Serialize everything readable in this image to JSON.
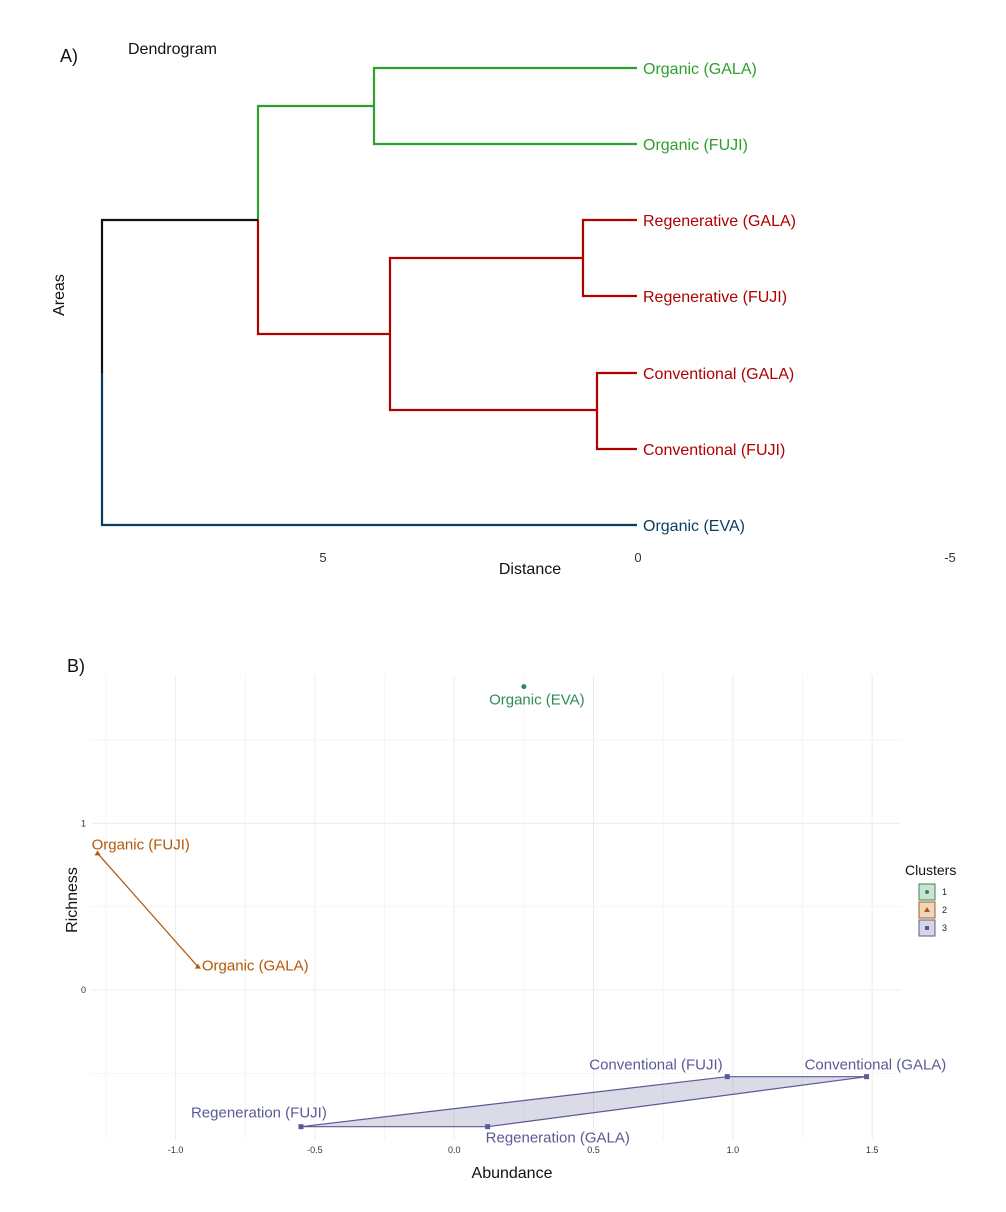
{
  "chart_data": [
    {
      "type": "dendrogram",
      "panel_label": "A)",
      "title": "Dendrogram",
      "xlabel": "Distance",
      "ylabel": "Areas",
      "x_ticks": [
        "5",
        "0",
        "-5"
      ],
      "leaves": [
        {
          "label": "Organic (GALA)",
          "color": "#2ca02c"
        },
        {
          "label": "Organic (FUJI)",
          "color": "#2ca02c"
        },
        {
          "label": "Regenerative (GALA)",
          "color": "#b00000"
        },
        {
          "label": "Regenerative (FUJI)",
          "color": "#b00000"
        },
        {
          "label": "Conventional (GALA)",
          "color": "#b00000"
        },
        {
          "label": "Conventional (FUJI)",
          "color": "#b00000"
        },
        {
          "label": "Organic (EVA)",
          "color": "#0b3c5d"
        }
      ],
      "merges": [
        {
          "children": [
            "Regenerative (GALA)",
            "Regenerative (FUJI)"
          ],
          "height": 0.9
        },
        {
          "children": [
            "Conventional (GALA)",
            "Conventional (FUJI)"
          ],
          "height": 0.65
        },
        {
          "children": [
            "Organic (GALA)",
            "Organic (FUJI)"
          ],
          "height": 4.2
        },
        {
          "children": [
            "Regenerative",
            "Conventional"
          ],
          "height": 3.95
        },
        {
          "children": [
            "Organic (GALA/FUJI)",
            "Regenerative/Conventional"
          ],
          "height": 6.0
        },
        {
          "children": [
            "all above",
            "Organic (EVA)"
          ],
          "height": 8.5
        }
      ]
    },
    {
      "type": "scatter",
      "panel_label": "B)",
      "xlabel": "Abundance",
      "ylabel": "Richness",
      "xlim": [
        -1.3,
        1.6
      ],
      "ylim": [
        -0.9,
        1.95
      ],
      "x_ticks": [
        "-1.0",
        "-0.5",
        "0.0",
        "0.5",
        "1.0",
        "1.5"
      ],
      "y_ticks": [
        "1",
        "0"
      ],
      "legend": {
        "title": "Clusters",
        "position": "right",
        "items": [
          "1",
          "2",
          "3"
        ]
      },
      "colors": {
        "1": "#2e8b57",
        "2": "#b35806",
        "3": "#5a5a96"
      },
      "points": [
        {
          "label": "Organic (EVA)",
          "cluster": "1",
          "x": 0.25,
          "y": 1.82
        },
        {
          "label": "Organic (FUJI)",
          "cluster": "2",
          "x": -1.28,
          "y": 0.82
        },
        {
          "label": "Organic (GALA)",
          "cluster": "2",
          "x": -0.92,
          "y": 0.14
        },
        {
          "label": "Conventional (FUJI)",
          "cluster": "3",
          "x": 0.98,
          "y": -0.52
        },
        {
          "label": "Conventional (GALA)",
          "cluster": "3",
          "x": 1.48,
          "y": -0.52
        },
        {
          "label": "Regeneration (FUJI)",
          "cluster": "3",
          "x": -0.55,
          "y": -0.82
        },
        {
          "label": "Regeneration (GALA)",
          "cluster": "3",
          "x": 0.12,
          "y": -0.82
        }
      ]
    }
  ]
}
